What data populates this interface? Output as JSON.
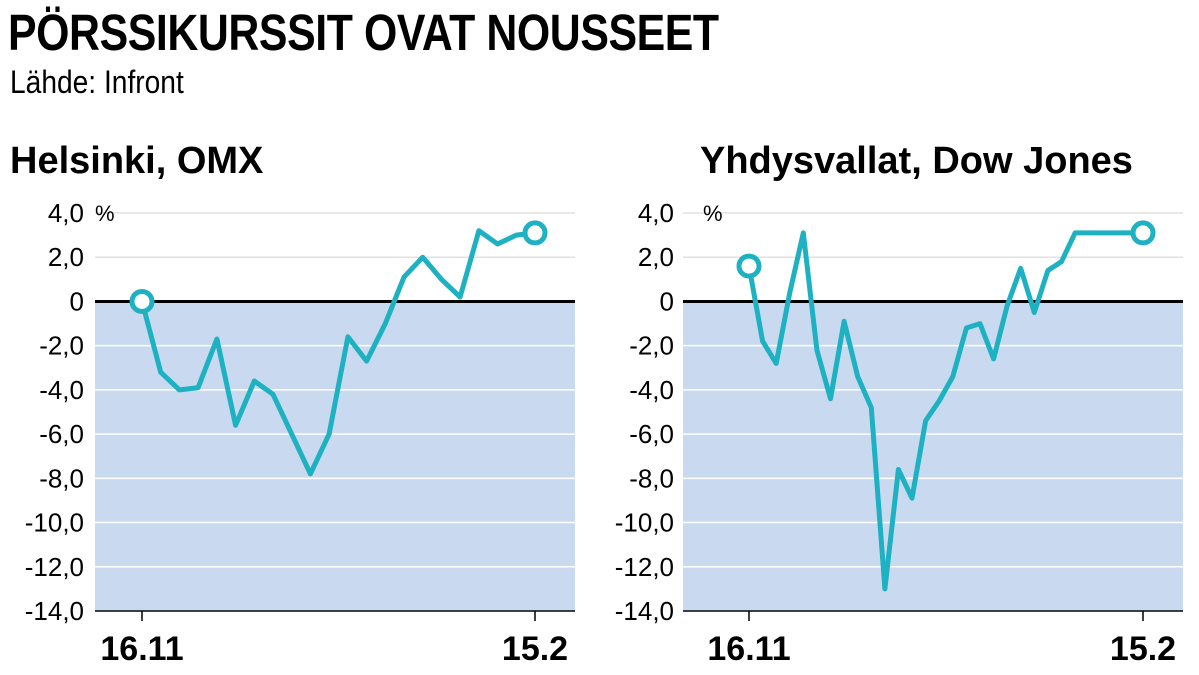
{
  "title": "PÖRSSIKURSSIT OVAT NOUSSEET",
  "source": "Lähde: Infront",
  "colors": {
    "line": "#1eb1c1",
    "negative_fill": "#c9daf0",
    "gridline": "#e2e2e2",
    "zero_line": "#000000",
    "text": "#000000"
  },
  "chart_data": [
    {
      "type": "line",
      "title": "Helsinki, OMX",
      "unit": "%",
      "ylim": [
        -14,
        4
      ],
      "yticks": [
        4,
        2,
        0,
        -2,
        -4,
        -6,
        -8,
        -10,
        -12,
        -14
      ],
      "ytick_labels": [
        "4,0",
        "2,0",
        "0",
        "-2,0",
        "-4,0",
        "-6,0",
        "-8,0",
        "-10,0",
        "-12,0",
        "-14,0"
      ],
      "xtick_labels": [
        "16.11",
        "15.2"
      ],
      "grid": true,
      "negative_area_shaded": true,
      "x": [
        0,
        1,
        2,
        3,
        4,
        5,
        6,
        7,
        8,
        9,
        10,
        11,
        12,
        13,
        14,
        15,
        16,
        17,
        18,
        19,
        20,
        21
      ],
      "values": [
        0,
        -3.2,
        -4.0,
        -3.9,
        -1.7,
        -5.6,
        -3.6,
        -4.2,
        -6.0,
        -7.8,
        -6.0,
        -1.6,
        -2.7,
        -1.0,
        1.1,
        2.0,
        1.0,
        0.2,
        3.2,
        2.6,
        3.0,
        3.1
      ],
      "start_marker_value": 0,
      "end_marker_value": 3.1
    },
    {
      "type": "line",
      "title": "Yhdysvallat, Dow Jones",
      "unit": "%",
      "ylim": [
        -14,
        4
      ],
      "yticks": [
        4,
        2,
        0,
        -2,
        -4,
        -6,
        -8,
        -10,
        -12,
        -14
      ],
      "ytick_labels": [
        "4,0",
        "2,0",
        "0",
        "-2,0",
        "-4,0",
        "-6,0",
        "-8,0",
        "-10,0",
        "-12,0",
        "-14,0"
      ],
      "xtick_labels": [
        "16.11",
        "15.2"
      ],
      "grid": true,
      "negative_area_shaded": true,
      "x": [
        0,
        1,
        2,
        3,
        4,
        5,
        6,
        7,
        8,
        9,
        10,
        11,
        12,
        13,
        14,
        15,
        16,
        17,
        18,
        19,
        20,
        21,
        22,
        23,
        24,
        25,
        26,
        27,
        28,
        29
      ],
      "values": [
        1.6,
        -1.8,
        -2.8,
        0.4,
        3.1,
        -2.2,
        -4.4,
        -0.9,
        -3.4,
        -4.8,
        -13.0,
        -7.6,
        -8.9,
        -5.4,
        -4.5,
        -3.4,
        -1.2,
        -1.0,
        -2.6,
        -0.2,
        1.5,
        -0.5,
        1.4,
        1.8,
        3.1,
        3.1,
        3.1,
        3.1,
        3.1,
        3.1
      ],
      "start_marker_value": 1.6,
      "end_marker_value": 3.1
    }
  ]
}
